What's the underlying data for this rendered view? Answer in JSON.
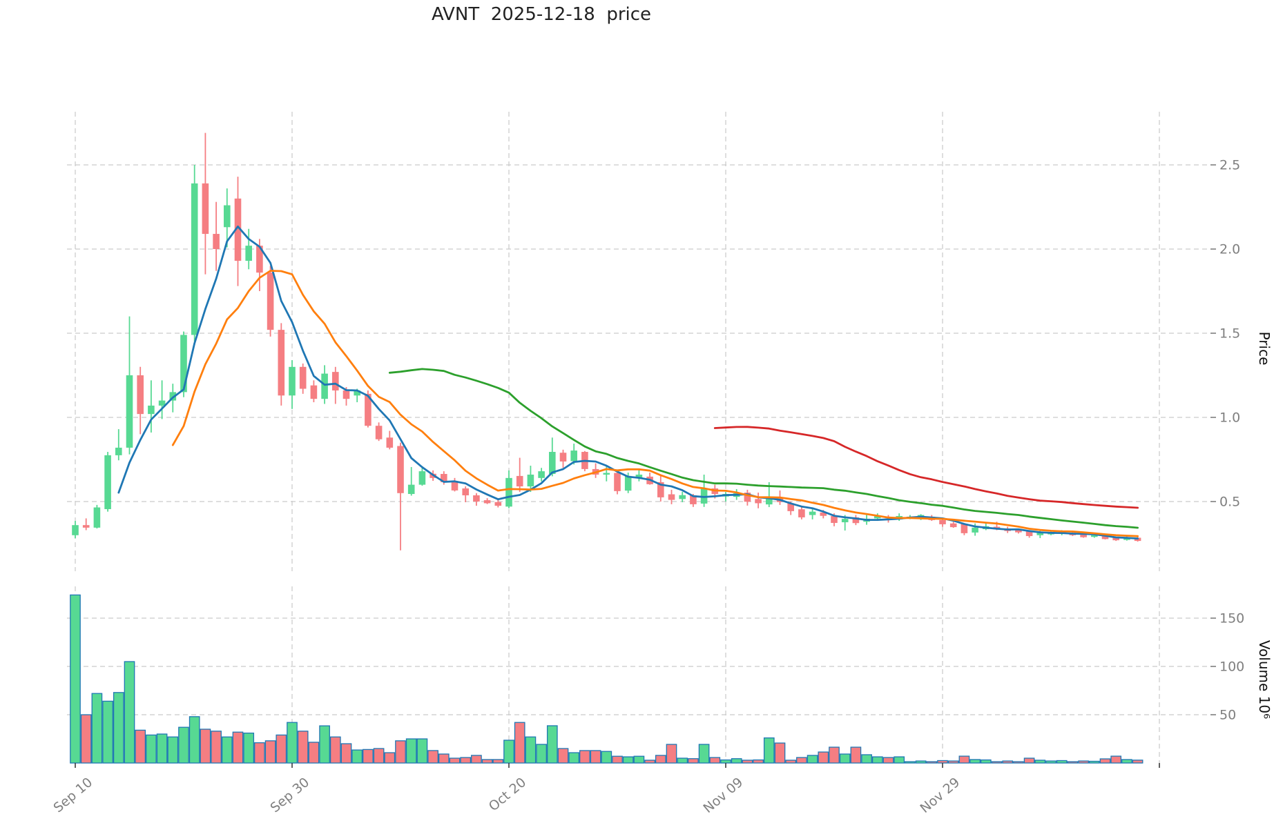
{
  "title": "AVNT  2025-12-18  price",
  "chart_data": {
    "type": "candlestick",
    "symbol": "AVNT",
    "as_of_date": "2025-12-18",
    "legend": "none",
    "grid": true,
    "price_axis": {
      "label": "Price",
      "side": "right",
      "ticks": [
        "0.5",
        "1.0",
        "1.5",
        "2.0",
        "2.5"
      ],
      "range": [
        0.09,
        2.81
      ]
    },
    "volume_axis": {
      "label": "Volume  10⁶",
      "side": "right",
      "ticks": [
        "50",
        "100",
        "150"
      ],
      "unit_millions": true,
      "range": [
        0,
        183
      ]
    },
    "x_axis": {
      "tick_indices": [
        0,
        20,
        40,
        60,
        80,
        100
      ],
      "tick_labels": [
        "Sep 10",
        "Sep 30",
        "Oct 20",
        "Nov 09",
        "Nov 29",
        ""
      ]
    },
    "moving_averages": [
      {
        "name": "MA5",
        "period": 5,
        "color": "#1f77b4"
      },
      {
        "name": "MA10",
        "period": 10,
        "color": "#ff7f0e"
      },
      {
        "name": "MA30",
        "period": 30,
        "color": "#2ca02c"
      },
      {
        "name": "MA60",
        "period": 60,
        "color": "#d62728"
      }
    ],
    "style": {
      "up_color": "#57d993",
      "down_color": "#f57e82",
      "volume_edge_color": "#1f77b4",
      "grid_color": "#c9c9c9",
      "tick_color": "#3a3a3a",
      "tick_label_color": "#7f7f7f",
      "axis_title_color": "#111111",
      "title_color": "#222222",
      "background": "#ffffff"
    },
    "candles": [
      [
        "2025-09-10",
        0.3,
        0.385,
        0.282,
        0.36,
        174
      ],
      [
        "2025-09-11",
        0.36,
        0.4,
        0.33,
        0.345,
        50
      ],
      [
        "2025-09-12",
        0.345,
        0.48,
        0.34,
        0.465,
        72
      ],
      [
        "2025-09-13",
        0.455,
        0.795,
        0.44,
        0.775,
        64
      ],
      [
        "2025-09-14",
        0.775,
        0.93,
        0.745,
        0.82,
        73
      ],
      [
        "2025-09-15",
        0.82,
        1.6,
        0.78,
        1.25,
        105
      ],
      [
        "2025-09-16",
        1.25,
        1.3,
        0.9,
        1.02,
        34
      ],
      [
        "2025-09-17",
        1.02,
        1.22,
        0.91,
        1.07,
        29
      ],
      [
        "2025-09-18",
        1.07,
        1.22,
        0.99,
        1.1,
        30
      ],
      [
        "2025-09-19",
        1.1,
        1.2,
        1.03,
        1.15,
        27
      ],
      [
        "2025-09-20",
        1.15,
        1.51,
        1.12,
        1.49,
        37
      ],
      [
        "2025-09-21",
        1.49,
        2.5,
        1.45,
        2.39,
        48
      ],
      [
        "2025-09-22",
        2.39,
        2.69,
        1.85,
        2.09,
        35
      ],
      [
        "2025-09-23",
        2.09,
        2.28,
        1.87,
        2.0,
        33
      ],
      [
        "2025-09-24",
        2.13,
        2.36,
        2.01,
        2.26,
        27
      ],
      [
        "2025-09-25",
        2.3,
        2.43,
        1.78,
        1.93,
        32
      ],
      [
        "2025-09-26",
        1.93,
        2.12,
        1.88,
        2.02,
        31
      ],
      [
        "2025-09-27",
        2.02,
        2.06,
        1.75,
        1.86,
        21
      ],
      [
        "2025-09-28",
        1.86,
        1.9,
        1.48,
        1.52,
        23
      ],
      [
        "2025-09-29",
        1.52,
        1.56,
        1.07,
        1.13,
        29
      ],
      [
        "2025-09-30",
        1.13,
        1.34,
        1.05,
        1.3,
        42
      ],
      [
        "2025-10-01",
        1.3,
        1.32,
        1.14,
        1.17,
        33
      ],
      [
        "2025-10-02",
        1.19,
        1.22,
        1.09,
        1.11,
        21.5
      ],
      [
        "2025-10-03",
        1.11,
        1.31,
        1.08,
        1.26,
        38.5
      ],
      [
        "2025-10-04",
        1.27,
        1.3,
        1.08,
        1.16,
        27
      ],
      [
        "2025-10-05",
        1.16,
        1.18,
        1.07,
        1.11,
        20
      ],
      [
        "2025-10-06",
        1.13,
        1.17,
        1.09,
        1.16,
        13.5
      ],
      [
        "2025-10-07",
        1.14,
        1.16,
        0.94,
        0.95,
        14
      ],
      [
        "2025-10-08",
        0.95,
        0.97,
        0.86,
        0.87,
        15
      ],
      [
        "2025-10-09",
        0.88,
        0.92,
        0.81,
        0.82,
        10.7
      ],
      [
        "2025-10-10",
        0.83,
        0.85,
        0.21,
        0.55,
        23
      ],
      [
        "2025-10-11",
        0.545,
        0.705,
        0.535,
        0.6,
        25
      ],
      [
        "2025-10-12",
        0.6,
        0.71,
        0.594,
        0.68,
        25
      ],
      [
        "2025-10-13",
        0.665,
        0.685,
        0.623,
        0.64,
        12.9
      ],
      [
        "2025-10-14",
        0.664,
        0.68,
        0.6,
        0.615,
        9.3
      ],
      [
        "2025-10-15",
        0.615,
        0.64,
        0.56,
        0.566,
        5
      ],
      [
        "2025-10-16",
        0.578,
        0.59,
        0.496,
        0.537,
        5.7
      ],
      [
        "2025-10-17",
        0.537,
        0.55,
        0.475,
        0.5,
        7.9
      ],
      [
        "2025-10-18",
        0.508,
        0.52,
        0.485,
        0.49,
        3.6
      ],
      [
        "2025-10-19",
        0.497,
        0.51,
        0.465,
        0.475,
        3.6
      ],
      [
        "2025-10-20",
        0.47,
        0.685,
        0.46,
        0.64,
        23.6
      ],
      [
        "2025-10-21",
        0.652,
        0.76,
        0.557,
        0.59,
        42
      ],
      [
        "2025-10-22",
        0.59,
        0.713,
        0.557,
        0.66,
        27
      ],
      [
        "2025-10-23",
        0.64,
        0.7,
        0.62,
        0.68,
        19.3
      ],
      [
        "2025-10-24",
        0.664,
        0.88,
        0.65,
        0.795,
        38.6
      ],
      [
        "2025-10-25",
        0.79,
        0.808,
        0.7,
        0.738,
        15
      ],
      [
        "2025-10-26",
        0.74,
        0.844,
        0.72,
        0.803,
        10.7
      ],
      [
        "2025-10-27",
        0.795,
        0.8,
        0.68,
        0.693,
        12.9
      ],
      [
        "2025-10-28",
        0.693,
        0.727,
        0.64,
        0.66,
        12.9
      ],
      [
        "2025-10-29",
        0.66,
        0.712,
        0.62,
        0.67,
        12
      ],
      [
        "2025-10-30",
        0.67,
        0.69,
        0.543,
        0.562,
        7
      ],
      [
        "2025-10-31",
        0.565,
        0.672,
        0.55,
        0.652,
        6.4
      ],
      [
        "2025-11-01",
        0.64,
        0.69,
        0.62,
        0.66,
        7
      ],
      [
        "2025-11-02",
        0.648,
        0.672,
        0.6,
        0.603,
        2.9
      ],
      [
        "2025-11-03",
        0.615,
        0.655,
        0.5,
        0.525,
        7.9
      ],
      [
        "2025-11-04",
        0.543,
        0.57,
        0.484,
        0.51,
        19.3
      ],
      [
        "2025-11-05",
        0.515,
        0.558,
        0.496,
        0.538,
        5
      ],
      [
        "2025-11-06",
        0.537,
        0.545,
        0.468,
        0.484,
        4.5
      ],
      [
        "2025-11-07",
        0.488,
        0.66,
        0.468,
        0.578,
        19.3
      ],
      [
        "2025-11-08",
        0.578,
        0.6,
        0.518,
        0.545,
        5.7
      ],
      [
        "2025-11-09",
        0.53,
        0.557,
        0.5,
        0.545,
        3.2
      ],
      [
        "2025-11-10",
        0.528,
        0.574,
        0.51,
        0.549,
        4.5
      ],
      [
        "2025-11-11",
        0.553,
        0.57,
        0.476,
        0.499,
        2.9
      ],
      [
        "2025-11-12",
        0.515,
        0.553,
        0.46,
        0.49,
        3.2
      ],
      [
        "2025-11-13",
        0.483,
        0.615,
        0.467,
        0.516,
        26
      ],
      [
        "2025-11-14",
        0.52,
        0.566,
        0.48,
        0.497,
        20.7
      ],
      [
        "2025-11-15",
        0.49,
        0.5,
        0.42,
        0.443,
        2.9
      ],
      [
        "2025-11-16",
        0.454,
        0.47,
        0.394,
        0.406,
        5.7
      ],
      [
        "2025-11-17",
        0.42,
        0.463,
        0.394,
        0.44,
        7.9
      ],
      [
        "2025-11-18",
        0.435,
        0.45,
        0.4,
        0.415,
        11.4
      ],
      [
        "2025-11-19",
        0.414,
        0.43,
        0.353,
        0.373,
        16.4
      ],
      [
        "2025-11-20",
        0.377,
        0.42,
        0.328,
        0.397,
        9.3
      ],
      [
        "2025-11-21",
        0.406,
        0.42,
        0.36,
        0.372,
        16.4
      ],
      [
        "2025-11-22",
        0.38,
        0.42,
        0.362,
        0.398,
        8.6
      ],
      [
        "2025-11-23",
        0.4,
        0.43,
        0.385,
        0.415,
        6.4
      ],
      [
        "2025-11-24",
        0.4,
        0.42,
        0.375,
        0.39,
        5.7
      ],
      [
        "2025-11-25",
        0.394,
        0.43,
        0.385,
        0.414,
        6.4
      ],
      [
        "2025-11-26",
        0.4,
        0.42,
        0.395,
        0.41,
        1.4
      ],
      [
        "2025-11-27",
        0.4,
        0.425,
        0.39,
        0.42,
        2.1
      ],
      [
        "2025-11-28",
        0.41,
        0.42,
        0.385,
        0.39,
        1.4
      ],
      [
        "2025-11-29",
        0.39,
        0.4,
        0.35,
        0.365,
        2.5
      ],
      [
        "2025-11-30",
        0.37,
        0.38,
        0.344,
        0.348,
        2.1
      ],
      [
        "2025-12-01",
        0.368,
        0.37,
        0.3,
        0.312,
        7.1
      ],
      [
        "2025-12-02",
        0.316,
        0.37,
        0.297,
        0.345,
        3.6
      ],
      [
        "2025-12-03",
        0.336,
        0.375,
        0.33,
        0.353,
        3.2
      ],
      [
        "2025-12-04",
        0.35,
        0.38,
        0.33,
        0.335,
        1.4
      ],
      [
        "2025-12-05",
        0.34,
        0.35,
        0.313,
        0.325,
        2.1
      ],
      [
        "2025-12-06",
        0.33,
        0.34,
        0.31,
        0.317,
        1.4
      ],
      [
        "2025-12-07",
        0.322,
        0.33,
        0.285,
        0.295,
        5
      ],
      [
        "2025-12-08",
        0.3,
        0.327,
        0.283,
        0.315,
        2.9
      ],
      [
        "2025-12-09",
        0.305,
        0.325,
        0.3,
        0.318,
        2.1
      ],
      [
        "2025-12-10",
        0.31,
        0.33,
        0.3,
        0.32,
        2.5
      ],
      [
        "2025-12-11",
        0.315,
        0.325,
        0.295,
        0.3,
        1.4
      ],
      [
        "2025-12-12",
        0.303,
        0.31,
        0.285,
        0.288,
        2.1
      ],
      [
        "2025-12-13",
        0.29,
        0.315,
        0.285,
        0.3,
        1.8
      ],
      [
        "2025-12-14",
        0.295,
        0.3,
        0.275,
        0.277,
        4.3
      ],
      [
        "2025-12-15",
        0.285,
        0.29,
        0.266,
        0.27,
        7.1
      ],
      [
        "2025-12-16",
        0.272,
        0.295,
        0.268,
        0.288,
        3.6
      ],
      [
        "2025-12-17",
        0.285,
        0.29,
        0.262,
        0.266,
        3
      ]
    ]
  }
}
